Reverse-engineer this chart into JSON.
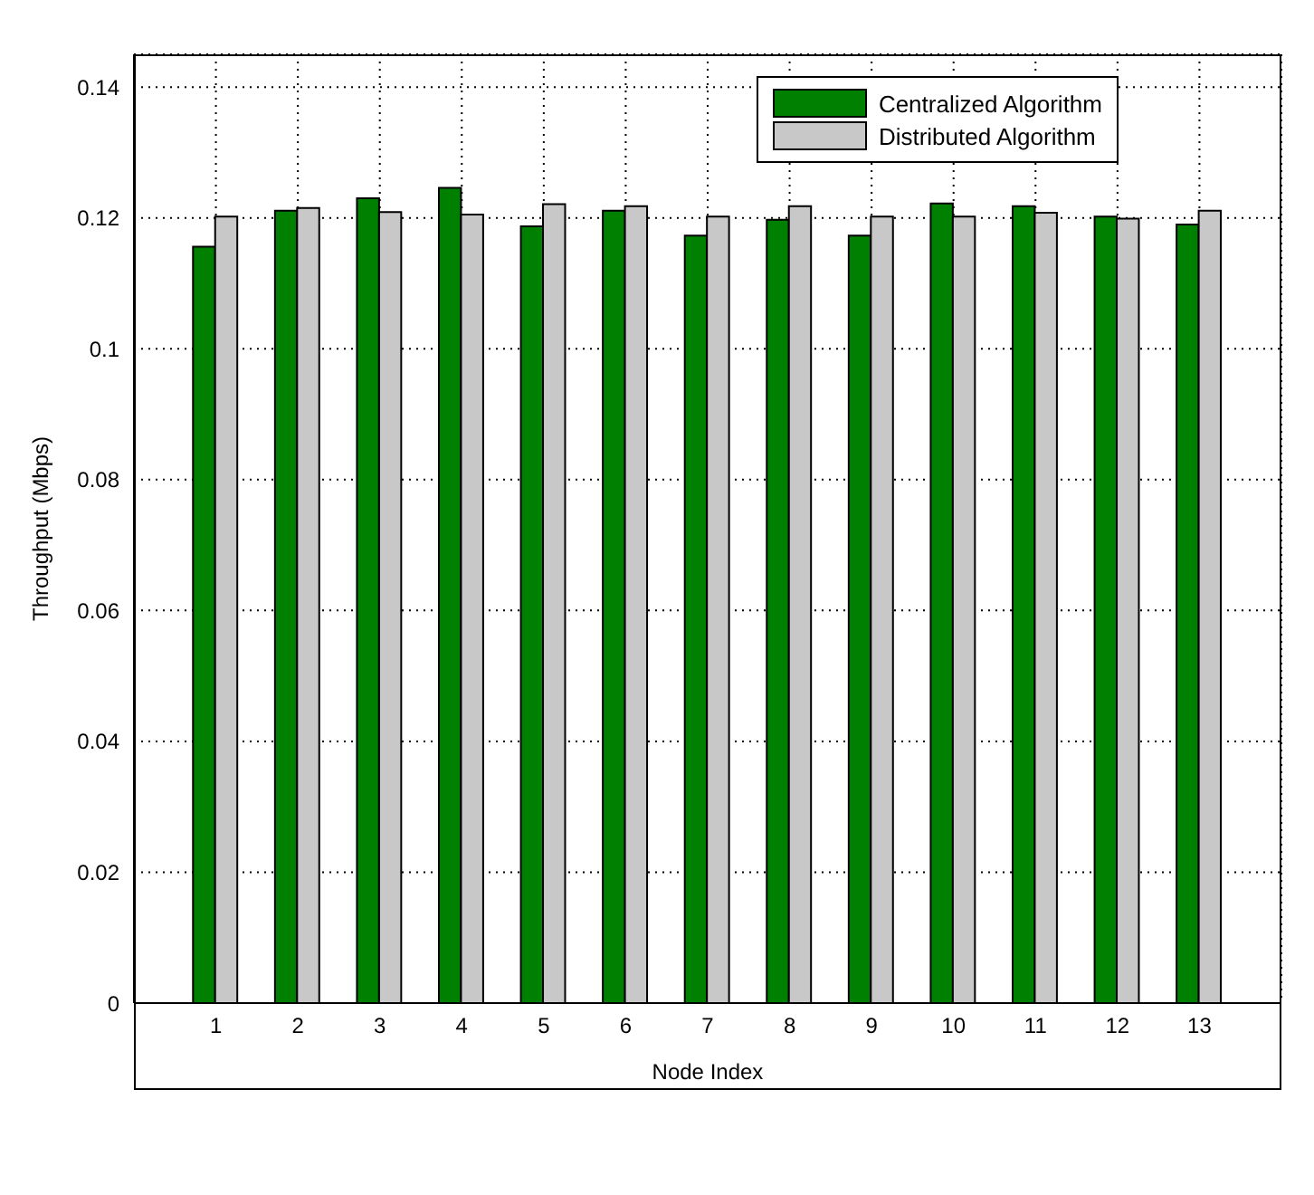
{
  "chart_data": {
    "type": "bar",
    "xlabel": "Node Index",
    "ylabel": "Throughput (Mbps)",
    "x": [
      1,
      2,
      3,
      4,
      5,
      6,
      7,
      8,
      9,
      10,
      11,
      12,
      13
    ],
    "xlim": [
      0,
      14
    ],
    "xticks": [
      1,
      2,
      3,
      4,
      5,
      6,
      7,
      8,
      9,
      10,
      11,
      12,
      13
    ],
    "ylim": [
      0,
      0.145
    ],
    "yticks": [
      0,
      0.02,
      0.04,
      0.06,
      0.08,
      0.1,
      0.12,
      0.14
    ],
    "series": [
      {
        "name": "Centralized Algorithm",
        "color": "#008000",
        "values": [
          0.1156,
          0.1211,
          0.123,
          0.1246,
          0.1187,
          0.1211,
          0.1173,
          0.1197,
          0.1173,
          0.1222,
          0.1218,
          0.1202,
          0.119
        ]
      },
      {
        "name": "Distributed Algorithm",
        "color": "#c8c8c8",
        "values": [
          0.1202,
          0.1215,
          0.1209,
          0.1205,
          0.1221,
          0.1218,
          0.1202,
          0.1218,
          0.1202,
          0.1202,
          0.1208,
          0.1199,
          0.1211
        ]
      }
    ],
    "grid": true,
    "legend": "top right"
  }
}
